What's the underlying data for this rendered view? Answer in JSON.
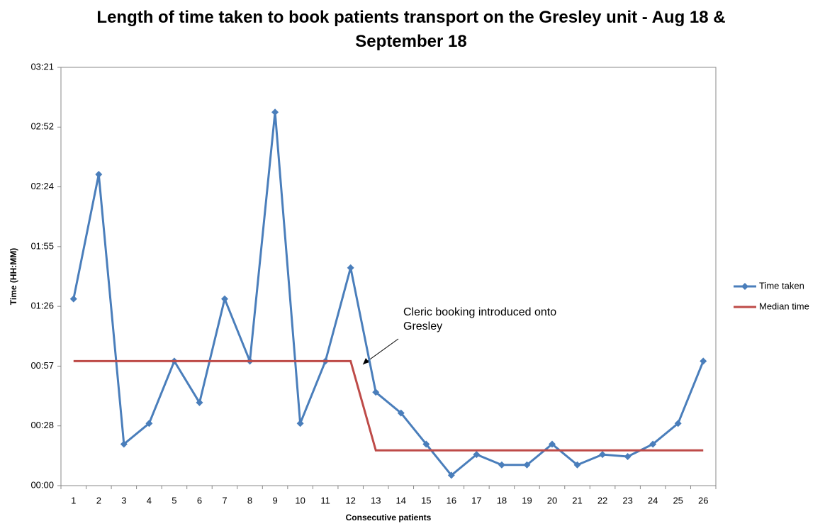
{
  "chart_data": {
    "type": "line",
    "title": "Length of time taken to book patients transport on the Gresley unit - Aug 18 & September 18",
    "x_label": "Consecutive patients",
    "y_label": "Time (HH:MM)",
    "categories": [
      "1",
      "2",
      "3",
      "4",
      "5",
      "6",
      "7",
      "8",
      "9",
      "10",
      "11",
      "12",
      "13",
      "14",
      "15",
      "16",
      "17",
      "18",
      "19",
      "20",
      "21",
      "22",
      "23",
      "24",
      "25",
      "26"
    ],
    "series": [
      {
        "name": "Time taken",
        "color": "#4a7ebb",
        "marker": "diamond",
        "values": [
          90,
          150,
          20,
          30,
          60,
          40,
          90,
          60,
          180,
          30,
          60,
          105,
          45,
          35,
          20,
          5,
          15,
          10,
          10,
          20,
          10,
          15,
          14,
          20,
          30,
          60
        ]
      },
      {
        "name": "Median time",
        "color": "#be4b48",
        "marker": "none",
        "values": [
          60,
          60,
          60,
          60,
          60,
          60,
          60,
          60,
          60,
          60,
          60,
          60,
          17,
          17,
          17,
          17,
          17,
          17,
          17,
          17,
          17,
          17,
          17,
          17,
          17,
          17
        ]
      }
    ],
    "ylim": [
      0,
      201.6
    ],
    "yticks": [
      {
        "value": 0,
        "label": "00:00"
      },
      {
        "value": 28.8,
        "label": "00:28"
      },
      {
        "value": 57.6,
        "label": "00:57"
      },
      {
        "value": 86.4,
        "label": "01:26"
      },
      {
        "value": 115.2,
        "label": "01:55"
      },
      {
        "value": 144,
        "label": "02:24"
      },
      {
        "value": 172.8,
        "label": "02:52"
      },
      {
        "value": 201.6,
        "label": "03:21"
      }
    ],
    "grid": false,
    "legend": "right",
    "annotation": "Cleric booking introduced onto Gresley"
  }
}
